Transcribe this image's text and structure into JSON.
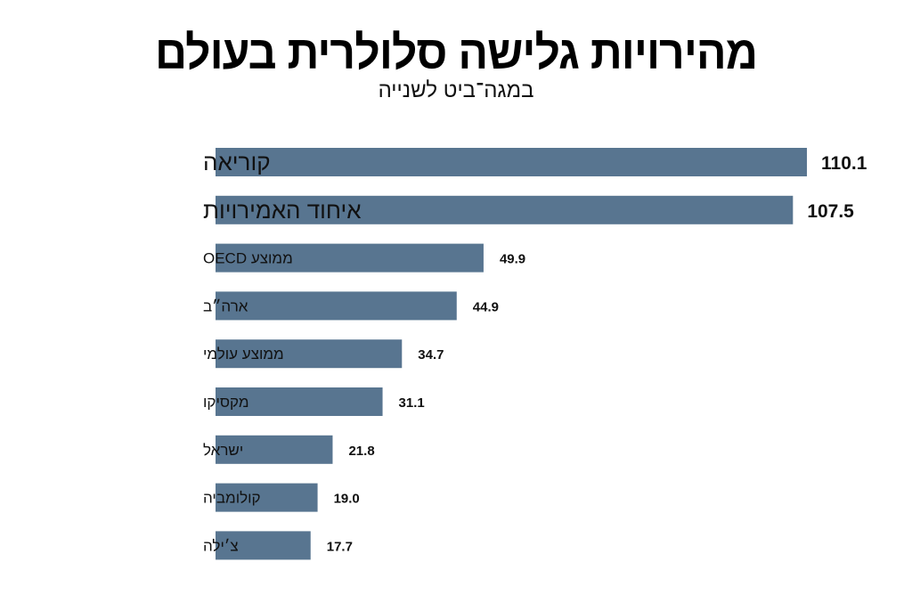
{
  "chart_data": {
    "type": "bar",
    "orientation": "horizontal",
    "title": "מהירויות גלישה סלולרית בעולם",
    "subtitle": "במגה־ביט לשנייה",
    "categories": [
      "קוריאה",
      "איחוד האמירויות",
      "ממוצע OECD",
      "ארה״ב",
      "ממוצע עולמי",
      "מקסיקו",
      "ישראל",
      "קולומביה",
      "צ׳ילה"
    ],
    "values": [
      110.1,
      107.5,
      49.9,
      44.9,
      34.7,
      31.1,
      21.8,
      19.0,
      17.7
    ],
    "value_labels": [
      "110.1",
      "107.5",
      "49.9",
      "44.9",
      "34.7",
      "31.1",
      "21.8",
      "19.0",
      "17.7"
    ],
    "highlighted": [
      true,
      true,
      false,
      false,
      false,
      false,
      false,
      false,
      false
    ],
    "xlim": [
      0,
      110.1
    ],
    "grid": false,
    "bar_color": "#587590"
  }
}
